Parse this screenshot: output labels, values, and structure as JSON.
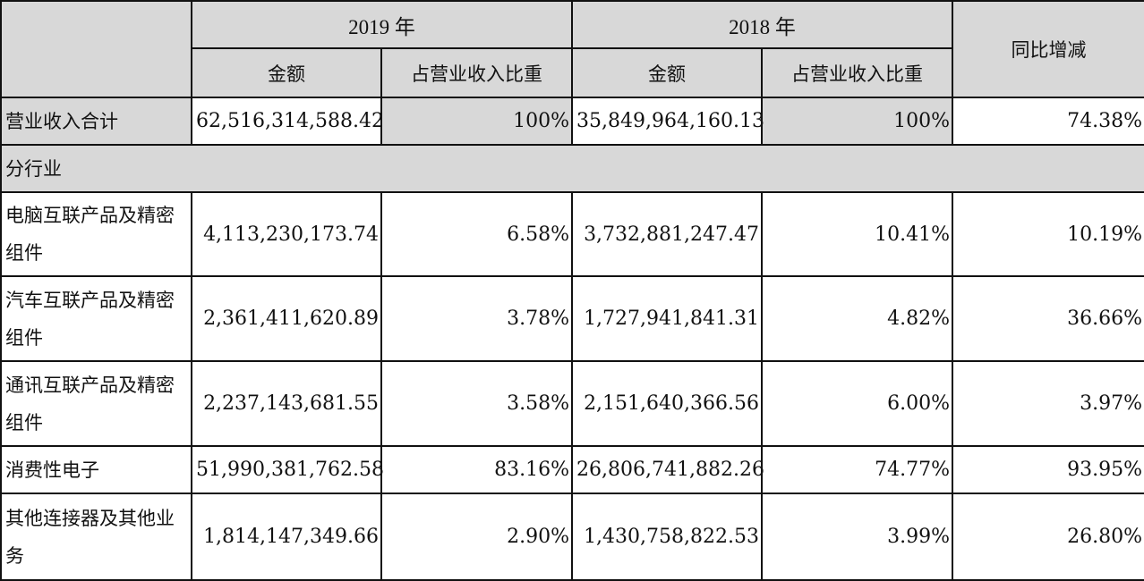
{
  "header": {
    "year_2019": "2019 年",
    "year_2018": "2018 年",
    "amount": "金额",
    "ratio": "占营业收入比重",
    "yoy": "同比增减"
  },
  "total": {
    "label": "营业收入合计",
    "amount_2019": "62,516,314,588.42",
    "ratio_2019": "100%",
    "amount_2018": "35,849,964,160.13",
    "ratio_2018": "100%",
    "yoy": "74.38%"
  },
  "section_label": "分行业",
  "rows": [
    {
      "label": "电脑互联产品及精密组件",
      "amount_2019": "4,113,230,173.74",
      "ratio_2019": "6.58%",
      "amount_2018": "3,732,881,247.47",
      "ratio_2018": "10.41%",
      "yoy": "10.19%"
    },
    {
      "label": "汽车互联产品及精密组件",
      "amount_2019": "2,361,411,620.89",
      "ratio_2019": "3.78%",
      "amount_2018": "1,727,941,841.31",
      "ratio_2018": "4.82%",
      "yoy": "36.66%"
    },
    {
      "label": "通讯互联产品及精密组件",
      "amount_2019": "2,237,143,681.55",
      "ratio_2019": "3.58%",
      "amount_2018": "2,151,640,366.56",
      "ratio_2018": "6.00%",
      "yoy": "3.97%"
    },
    {
      "label": "消费性电子",
      "amount_2019": "51,990,381,762.58",
      "ratio_2019": "83.16%",
      "amount_2018": "26,806,741,882.26",
      "ratio_2018": "74.77%",
      "yoy": "93.95%"
    },
    {
      "label": "其他连接器及其他业务",
      "amount_2019": "1,814,147,349.66",
      "ratio_2019": "2.90%",
      "amount_2018": "1,430,758,822.53",
      "ratio_2018": "3.99%",
      "yoy": "26.80%"
    }
  ]
}
